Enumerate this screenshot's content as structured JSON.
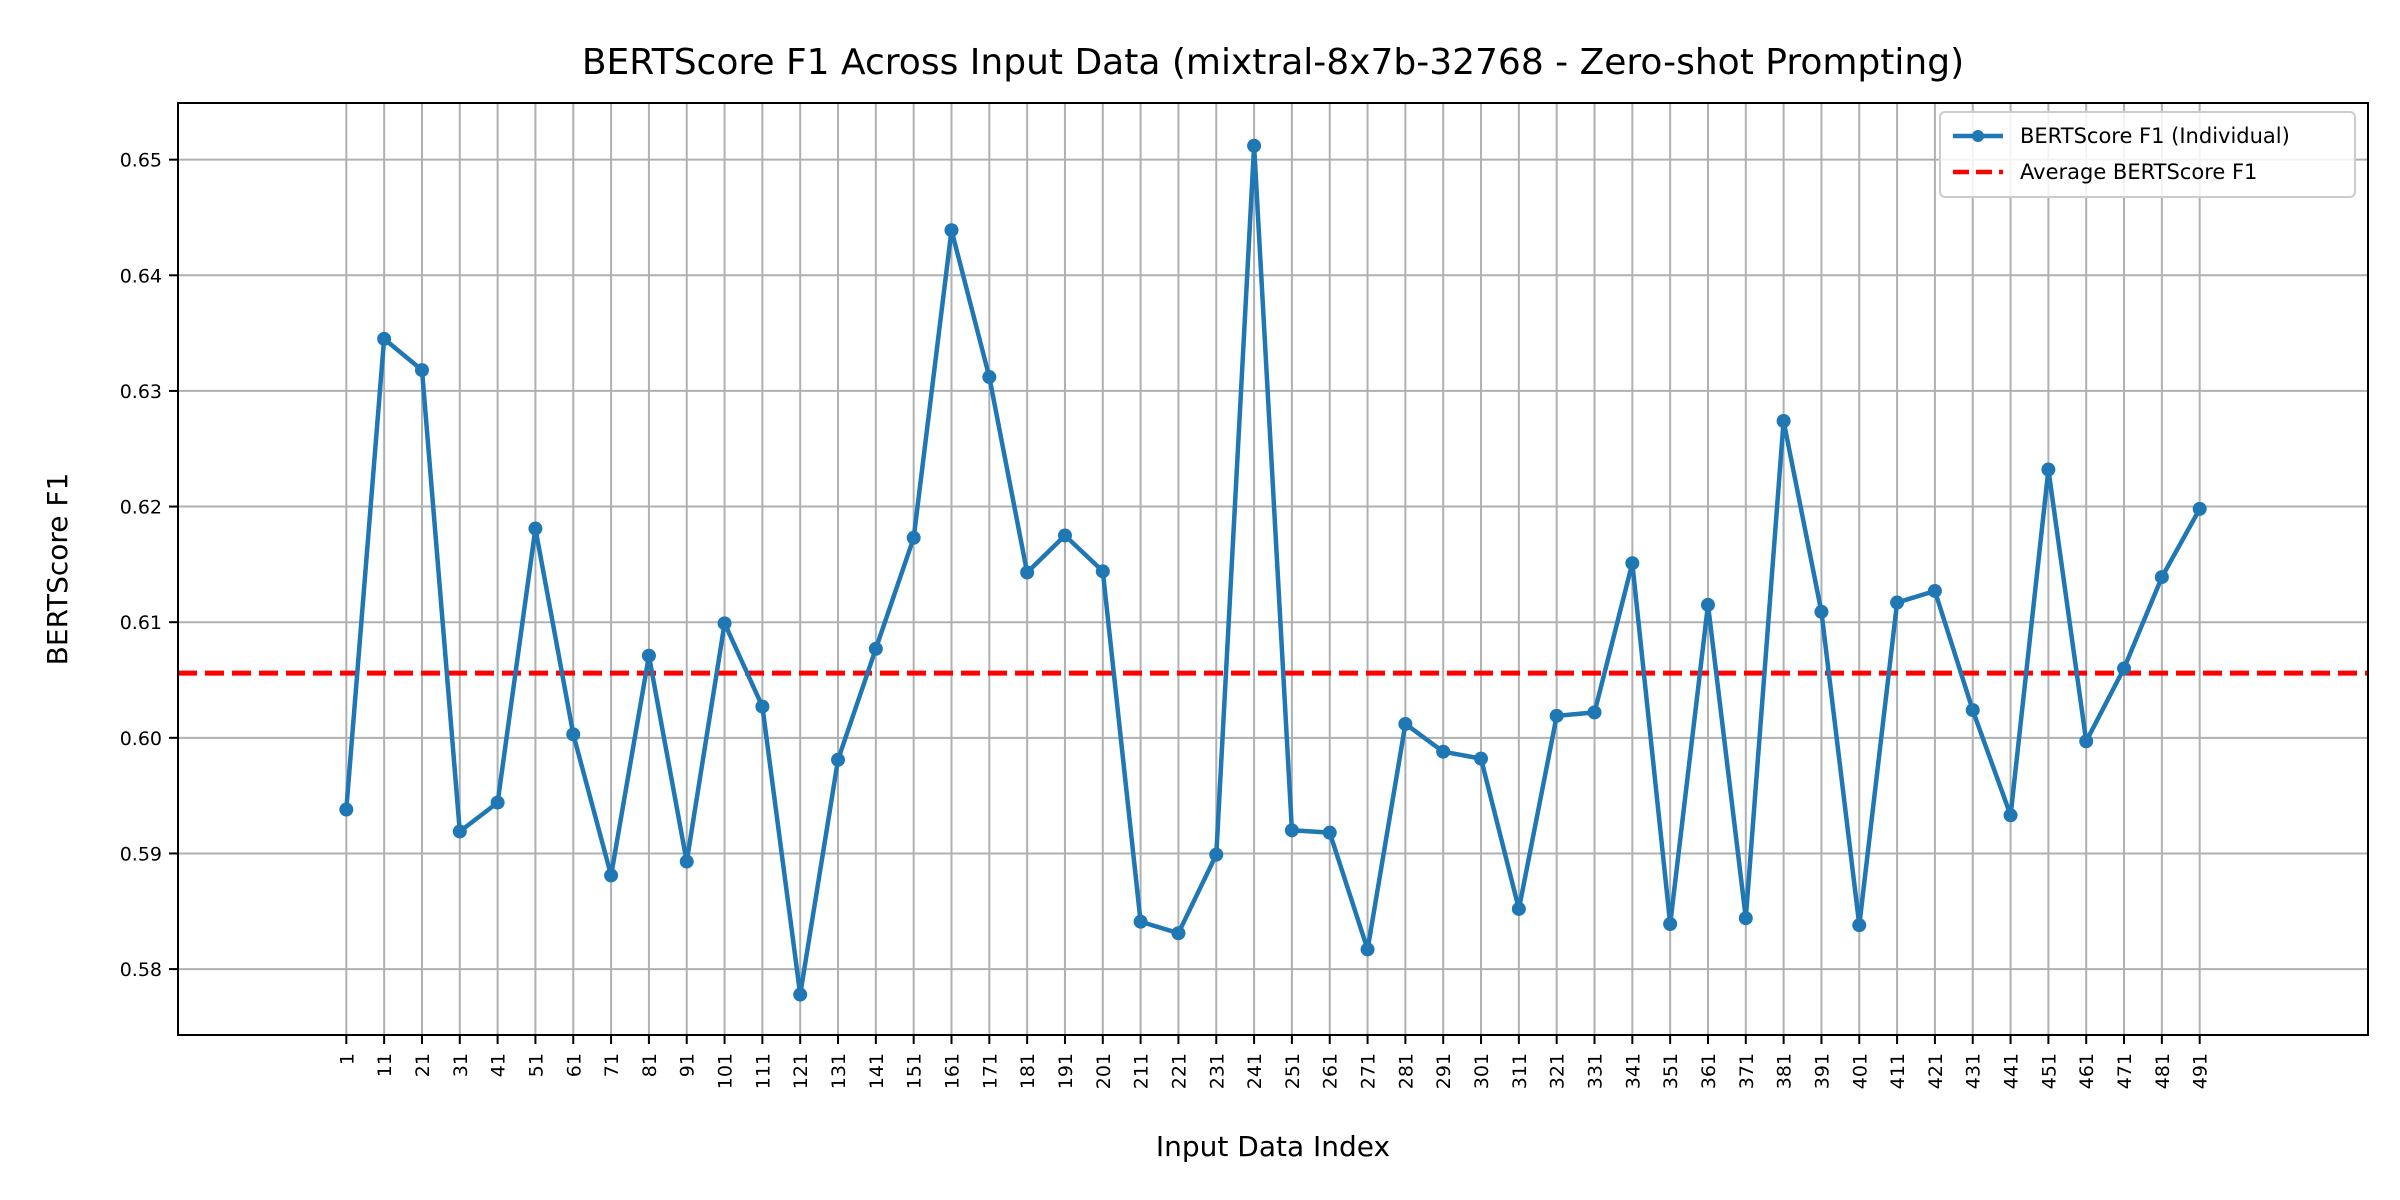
{
  "chart_data": {
    "type": "line",
    "title": "BERTScore F1 Across Input Data (mixtral-8x7b-32768 - Zero-shot Prompting)",
    "xlabel": "Input Data Index",
    "ylabel": "BERTScore F1",
    "x": [
      1,
      11,
      21,
      31,
      41,
      51,
      61,
      71,
      81,
      91,
      101,
      111,
      121,
      131,
      141,
      151,
      161,
      171,
      181,
      191,
      201,
      211,
      221,
      231,
      241,
      251,
      261,
      271,
      281,
      291,
      301,
      311,
      321,
      331,
      341,
      351,
      361,
      371,
      381,
      391,
      401,
      411,
      421,
      431,
      441,
      451,
      461,
      471,
      481,
      491
    ],
    "xlim": [
      -43.5,
      535.5
    ],
    "ylim": [
      0.5743,
      0.6549
    ],
    "yticks": [
      0.58,
      0.59,
      0.6,
      0.61,
      0.62,
      0.63,
      0.64,
      0.65
    ],
    "ytick_labels": [
      "0.58",
      "0.59",
      "0.60",
      "0.61",
      "0.62",
      "0.63",
      "0.64",
      "0.65"
    ],
    "grid": true,
    "legend_position": "top-right",
    "series": [
      {
        "name": "BERTScore F1 (Individual)",
        "color": "#1f77b4",
        "style": "solid-line-with-markers",
        "values": [
          0.5938,
          0.6345,
          0.6318,
          0.5919,
          0.5944,
          0.6181,
          0.6003,
          0.5881,
          0.6071,
          0.5893,
          0.6099,
          0.6027,
          0.5778,
          0.5981,
          0.6077,
          0.6173,
          0.6439,
          0.6312,
          0.6143,
          0.6175,
          0.6144,
          0.5841,
          0.5831,
          0.5899,
          0.6512,
          0.592,
          0.5918,
          0.5817,
          0.6012,
          0.5988,
          0.5982,
          0.5852,
          0.6019,
          0.6022,
          0.6151,
          0.5839,
          0.6115,
          0.5844,
          0.6274,
          0.6109,
          0.5838,
          0.6117,
          0.6127,
          0.6024,
          0.5933,
          0.6232,
          0.5997,
          0.606,
          0.6139,
          0.6198
        ]
      },
      {
        "name": "Average BERTScore F1",
        "color": "#ff0000",
        "style": "dashed-horizontal-line",
        "value": 0.6056
      }
    ]
  }
}
